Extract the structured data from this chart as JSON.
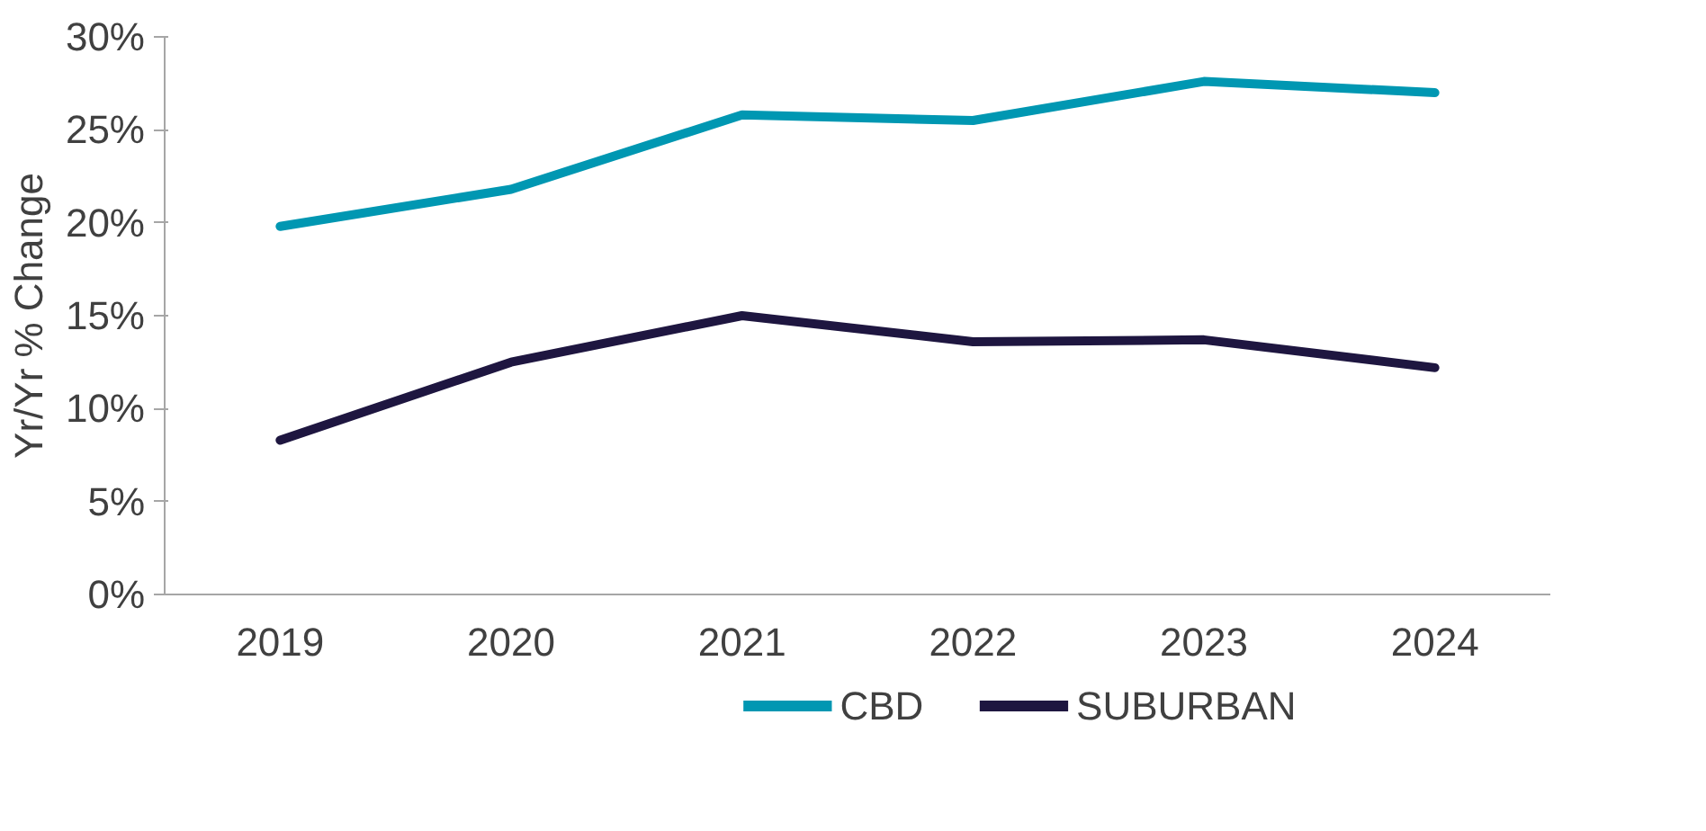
{
  "chart_data": {
    "type": "line",
    "ylabel": "Yr/Yr % Change",
    "categories": [
      "2019",
      "2020",
      "2021",
      "2022",
      "2023",
      "2024"
    ],
    "series": [
      {
        "name": "CBD",
        "color": "#0097b2",
        "values": [
          19.8,
          21.8,
          25.8,
          25.5,
          27.6,
          27.0
        ]
      },
      {
        "name": "SUBURBAN",
        "color": "#1e1640",
        "values": [
          8.3,
          12.5,
          15.0,
          13.6,
          13.7,
          12.2
        ]
      }
    ],
    "ylim": [
      0,
      30
    ],
    "yticks": [
      {
        "value": 0,
        "label": "0%"
      },
      {
        "value": 5,
        "label": "5%"
      },
      {
        "value": 10,
        "label": "10%"
      },
      {
        "value": 15,
        "label": "15%"
      },
      {
        "value": 20,
        "label": "20%"
      },
      {
        "value": 25,
        "label": "25%"
      },
      {
        "value": 30,
        "label": "30%"
      }
    ],
    "grid": false,
    "legend": "bottom",
    "marker": "none",
    "line_style": "solid"
  }
}
